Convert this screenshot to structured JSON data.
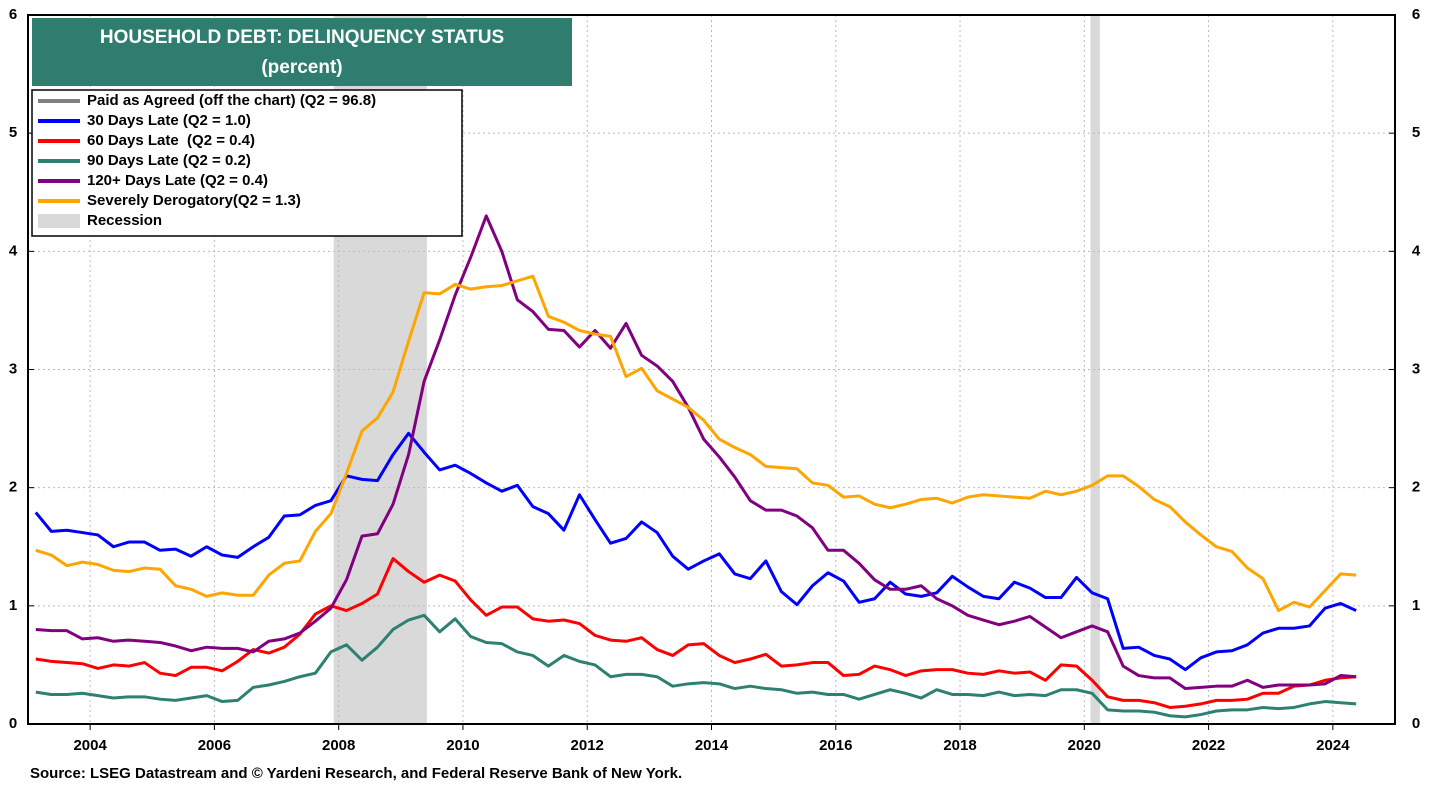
{
  "chart_data": {
    "type": "line",
    "title": "HOUSEHOLD DEBT: DELINQUENCY STATUS",
    "subtitle": "(percent)",
    "source": "Source: LSEG Datastream and © Yardeni Research, and Federal Reserve Bank of New York.",
    "x": [
      2003.125,
      2003.375,
      2003.625,
      2003.875,
      2004.125,
      2004.375,
      2004.625,
      2004.875,
      2005.125,
      2005.375,
      2005.625,
      2005.875,
      2006.125,
      2006.375,
      2006.625,
      2006.875,
      2007.125,
      2007.375,
      2007.625,
      2007.875,
      2008.125,
      2008.375,
      2008.625,
      2008.875,
      2009.125,
      2009.375,
      2009.625,
      2009.875,
      2010.125,
      2010.375,
      2010.625,
      2010.875,
      2011.125,
      2011.375,
      2011.625,
      2011.875,
      2012.125,
      2012.375,
      2012.625,
      2012.875,
      2013.125,
      2013.375,
      2013.625,
      2013.875,
      2014.125,
      2014.375,
      2014.625,
      2014.875,
      2015.125,
      2015.375,
      2015.625,
      2015.875,
      2016.125,
      2016.375,
      2016.625,
      2016.875,
      2017.125,
      2017.375,
      2017.625,
      2017.875,
      2018.125,
      2018.375,
      2018.625,
      2018.875,
      2019.125,
      2019.375,
      2019.625,
      2019.875,
      2020.125,
      2020.375,
      2020.625,
      2020.875,
      2021.125,
      2021.375,
      2021.625,
      2021.875,
      2022.125,
      2022.375,
      2022.625,
      2022.875,
      2023.125,
      2023.375,
      2023.625,
      2023.875,
      2024.125,
      2024.375
    ],
    "series": [
      {
        "name": "30 Days Late (Q2 = 1.0)",
        "color": "#0000ff",
        "values": [
          1.79,
          1.63,
          1.64,
          1.62,
          1.6,
          1.5,
          1.54,
          1.54,
          1.47,
          1.48,
          1.42,
          1.5,
          1.43,
          1.41,
          1.5,
          1.58,
          1.76,
          1.77,
          1.85,
          1.89,
          2.1,
          2.07,
          2.06,
          2.28,
          2.46,
          2.3,
          2.15,
          2.19,
          2.12,
          2.04,
          1.97,
          2.02,
          1.84,
          1.78,
          1.64,
          1.94,
          1.73,
          1.53,
          1.57,
          1.71,
          1.62,
          1.42,
          1.31,
          1.38,
          1.44,
          1.27,
          1.23,
          1.38,
          1.12,
          1.01,
          1.17,
          1.28,
          1.21,
          1.03,
          1.06,
          1.2,
          1.1,
          1.08,
          1.11,
          1.25,
          1.16,
          1.08,
          1.06,
          1.2,
          1.15,
          1.07,
          1.07,
          1.24,
          1.11,
          1.06,
          0.64,
          0.65,
          0.58,
          0.55,
          0.46,
          0.56,
          0.61,
          0.62,
          0.67,
          0.77,
          0.81,
          0.81,
          0.83,
          0.98,
          1.02,
          0.96
        ]
      },
      {
        "name": "60 Days Late  (Q2 = 0.4)",
        "color": "#ff0000",
        "values": [
          0.55,
          0.53,
          0.52,
          0.51,
          0.47,
          0.5,
          0.49,
          0.52,
          0.43,
          0.41,
          0.48,
          0.48,
          0.45,
          0.53,
          0.63,
          0.6,
          0.65,
          0.76,
          0.93,
          1.0,
          0.96,
          1.02,
          1.1,
          1.4,
          1.29,
          1.2,
          1.26,
          1.21,
          1.05,
          0.92,
          0.99,
          0.99,
          0.89,
          0.87,
          0.88,
          0.85,
          0.75,
          0.71,
          0.7,
          0.73,
          0.63,
          0.58,
          0.67,
          0.68,
          0.58,
          0.52,
          0.55,
          0.59,
          0.49,
          0.5,
          0.52,
          0.52,
          0.41,
          0.42,
          0.49,
          0.46,
          0.41,
          0.45,
          0.46,
          0.46,
          0.43,
          0.42,
          0.45,
          0.43,
          0.44,
          0.37,
          0.5,
          0.49,
          0.37,
          0.23,
          0.2,
          0.2,
          0.18,
          0.14,
          0.15,
          0.17,
          0.2,
          0.2,
          0.21,
          0.26,
          0.26,
          0.32,
          0.33,
          0.37,
          0.39,
          0.4
        ]
      },
      {
        "name": "90 Days Late (Q2 = 0.2)",
        "color": "#2e8070",
        "values": [
          0.27,
          0.25,
          0.25,
          0.26,
          0.24,
          0.22,
          0.23,
          0.23,
          0.21,
          0.2,
          0.22,
          0.24,
          0.19,
          0.2,
          0.31,
          0.33,
          0.36,
          0.4,
          0.43,
          0.61,
          0.67,
          0.54,
          0.65,
          0.8,
          0.88,
          0.92,
          0.78,
          0.89,
          0.74,
          0.69,
          0.68,
          0.61,
          0.58,
          0.49,
          0.58,
          0.53,
          0.5,
          0.4,
          0.42,
          0.42,
          0.4,
          0.32,
          0.34,
          0.35,
          0.34,
          0.3,
          0.32,
          0.3,
          0.29,
          0.26,
          0.27,
          0.25,
          0.25,
          0.21,
          0.25,
          0.29,
          0.26,
          0.22,
          0.29,
          0.25,
          0.25,
          0.24,
          0.27,
          0.24,
          0.25,
          0.24,
          0.29,
          0.29,
          0.26,
          0.12,
          0.11,
          0.11,
          0.1,
          0.07,
          0.06,
          0.08,
          0.11,
          0.12,
          0.12,
          0.14,
          0.13,
          0.14,
          0.17,
          0.19,
          0.18,
          0.17
        ]
      },
      {
        "name": "120+ Days Late (Q2 = 0.4)",
        "color": "#800080",
        "values": [
          0.8,
          0.79,
          0.79,
          0.72,
          0.73,
          0.7,
          0.71,
          0.7,
          0.69,
          0.66,
          0.62,
          0.65,
          0.64,
          0.64,
          0.61,
          0.7,
          0.72,
          0.77,
          0.87,
          0.98,
          1.22,
          1.59,
          1.61,
          1.86,
          2.28,
          2.9,
          3.25,
          3.63,
          3.95,
          4.3,
          4.0,
          3.59,
          3.49,
          3.34,
          3.33,
          3.19,
          3.33,
          3.18,
          3.39,
          3.12,
          3.03,
          2.9,
          2.68,
          2.41,
          2.26,
          2.09,
          1.89,
          1.81,
          1.81,
          1.76,
          1.66,
          1.47,
          1.47,
          1.36,
          1.22,
          1.14,
          1.14,
          1.17,
          1.06,
          1.0,
          0.92,
          0.88,
          0.84,
          0.87,
          0.91,
          0.82,
          0.73,
          0.78,
          0.83,
          0.78,
          0.49,
          0.41,
          0.39,
          0.39,
          0.3,
          0.31,
          0.32,
          0.32,
          0.37,
          0.31,
          0.33,
          0.33,
          0.33,
          0.34,
          0.41,
          0.4
        ]
      },
      {
        "name": "Severely Derogatory(Q2 = 1.3)",
        "color": "#ffa500",
        "values": [
          1.47,
          1.43,
          1.34,
          1.37,
          1.35,
          1.3,
          1.29,
          1.32,
          1.31,
          1.17,
          1.14,
          1.08,
          1.11,
          1.09,
          1.09,
          1.26,
          1.36,
          1.38,
          1.63,
          1.78,
          2.12,
          2.48,
          2.59,
          2.81,
          3.24,
          3.65,
          3.64,
          3.72,
          3.68,
          3.7,
          3.71,
          3.75,
          3.79,
          3.45,
          3.4,
          3.33,
          3.3,
          3.28,
          2.94,
          3.01,
          2.82,
          2.75,
          2.68,
          2.57,
          2.41,
          2.34,
          2.28,
          2.18,
          2.17,
          2.16,
          2.04,
          2.02,
          1.92,
          1.93,
          1.86,
          1.83,
          1.86,
          1.9,
          1.91,
          1.87,
          1.92,
          1.94,
          1.93,
          1.92,
          1.91,
          1.97,
          1.94,
          1.97,
          2.02,
          2.1,
          2.1,
          2.01,
          1.9,
          1.84,
          1.71,
          1.6,
          1.5,
          1.46,
          1.32,
          1.23,
          0.96,
          1.03,
          0.99,
          1.13,
          1.27,
          1.26
        ]
      }
    ],
    "legend_extra": [
      {
        "name": "Paid as Agreed (off the chart) (Q2 = 96.8)",
        "color": "#808080"
      }
    ],
    "recession": {
      "name": "Recession",
      "color": "#d9d9d9",
      "spans": [
        [
          2007.92,
          2009.42
        ],
        [
          2020.1,
          2020.25
        ]
      ]
    },
    "xlim": [
      2003,
      2025
    ],
    "xticks": [
      2004,
      2006,
      2008,
      2010,
      2012,
      2014,
      2016,
      2018,
      2020,
      2022,
      2024
    ],
    "ylim": [
      0,
      6
    ],
    "yticks": [
      0,
      1,
      2,
      3,
      4,
      5,
      6
    ],
    "y2lim": [
      0,
      6
    ],
    "y2ticks": [
      0,
      1,
      2,
      3,
      4,
      5,
      6
    ],
    "grid": true
  }
}
